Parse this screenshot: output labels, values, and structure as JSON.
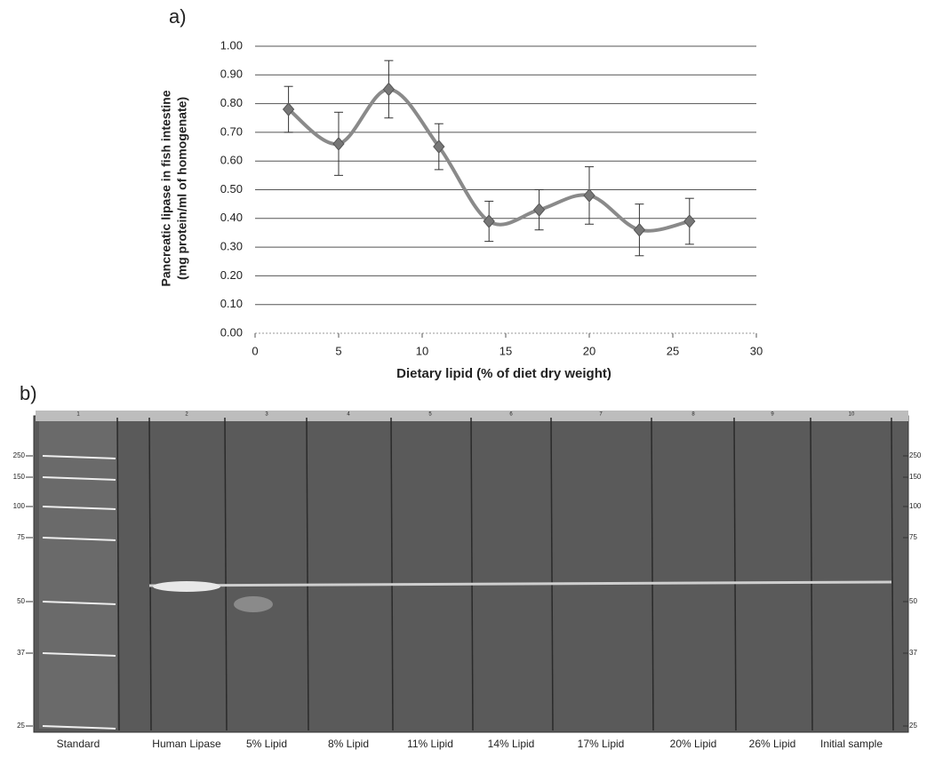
{
  "chart_data": {
    "type": "line",
    "panel_label": "a)",
    "ylabel": [
      "Pancreatic lipase in fish intestine",
      "(mg protein/ml of homogenate)"
    ],
    "xlabel": "Dietary lipid (% of diet dry weight)",
    "x": [
      2,
      5,
      8,
      11,
      14,
      17,
      20,
      23,
      26
    ],
    "series": [
      {
        "color": "#8a8a8a",
        "values": [
          0.78,
          0.66,
          0.85,
          0.65,
          0.39,
          0.43,
          0.48,
          0.36,
          0.39
        ],
        "errors": [
          0.08,
          0.11,
          0.1,
          0.08,
          0.07,
          0.07,
          0.1,
          0.09,
          0.08
        ]
      }
    ],
    "xlim": [
      0,
      30
    ],
    "xticks": [
      0,
      5,
      10,
      15,
      20,
      25,
      30
    ],
    "ylim": [
      0,
      1
    ],
    "yticks": [
      {
        "value": 0,
        "label": "0.00"
      },
      {
        "value": 0.1,
        "label": "0.10"
      },
      {
        "value": 0.2,
        "label": "0.20"
      },
      {
        "value": 0.3,
        "label": "0.30"
      },
      {
        "value": 0.4,
        "label": "0.40"
      },
      {
        "value": 0.5,
        "label": "0.50"
      },
      {
        "value": 0.6,
        "label": "0.60"
      },
      {
        "value": 0.7,
        "label": "0.70"
      },
      {
        "value": 0.8,
        "label": "0.80"
      },
      {
        "value": 0.9,
        "label": "0.90"
      },
      {
        "value": 1,
        "label": "1.00"
      }
    ],
    "grid": true
  },
  "gel": {
    "panel_label": "b)",
    "lane_numbers": [
      "1",
      "2",
      "3",
      "4",
      "5",
      "6",
      "7",
      "8",
      "9",
      "10"
    ],
    "lanes": [
      "Standard",
      "Human Lipase",
      "5% Lipid",
      "8% Lipid",
      "11% Lipid",
      "14% Lipid",
      "17% Lipid",
      "20% Lipid",
      "26% Lipid",
      "Initial sample"
    ],
    "markers": [
      "250",
      "150",
      "100",
      "75",
      "50",
      "37",
      "25"
    ]
  }
}
